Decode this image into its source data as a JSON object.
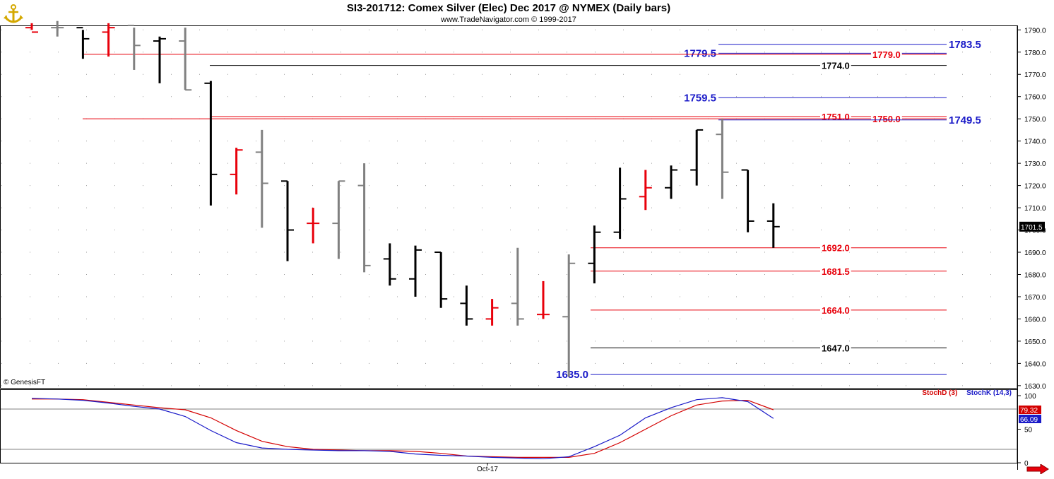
{
  "header": {
    "title": "SI3-201712:  Comex Silver (Elec) Dec 2017 @ NYMEX  (Daily bars)",
    "subtitle": "www.TradeNavigator.com © 1999-2017"
  },
  "footer": {
    "copyright": "© GenesisFT",
    "date_label": "Oct-17"
  },
  "colors": {
    "up_bar": "#000000",
    "down_bar": "#808080",
    "red_bar": "#e8000b",
    "red_line": "#e8000b",
    "blue_line": "#1a1ac8",
    "black_line": "#000000",
    "stoch_d": "#d40000",
    "stoch_k": "#1a1ac8"
  },
  "chart_data": {
    "type": "ohlc",
    "y_axis": {
      "range": [
        1629,
        1792
      ],
      "ticks": [
        "1630.0",
        "1640.0",
        "1650.0",
        "1660.0",
        "1670.0",
        "1680.0",
        "1690.0",
        "1700.0",
        "1710.0",
        "1720.0",
        "1730.0",
        "1740.0",
        "1750.0",
        "1760.0",
        "1770.0",
        "1780.0",
        "1790.0"
      ]
    },
    "last_price": "1701.5",
    "bars": [
      {
        "o": 1791.0,
        "h": 1793.0,
        "l": 1790.0,
        "c": 1789.0,
        "color": "red"
      },
      {
        "o": 1791.0,
        "h": 1794.0,
        "l": 1787.0,
        "c": 1791.0,
        "color": "grey"
      },
      {
        "o": 1791.0,
        "h": 1790.0,
        "l": 1777.0,
        "c": 1786.0,
        "color": "black"
      },
      {
        "o": 1789.0,
        "h": 1793.0,
        "l": 1778.0,
        "c": 1791.0,
        "color": "red"
      },
      {
        "o": 1792.0,
        "h": 1791.0,
        "l": 1772.0,
        "c": 1783.0,
        "color": "grey"
      },
      {
        "o": 1785.0,
        "h": 1787.0,
        "l": 1766.0,
        "c": 1786.0,
        "color": "black"
      },
      {
        "o": 1785.0,
        "h": 1791.0,
        "l": 1763.0,
        "c": 1763.0,
        "color": "grey"
      },
      {
        "o": 1766.0,
        "h": 1767.0,
        "l": 1711.0,
        "c": 1725.0,
        "color": "black"
      },
      {
        "o": 1725.0,
        "h": 1737.0,
        "l": 1716.0,
        "c": 1736.0,
        "color": "red"
      },
      {
        "o": 1735.0,
        "h": 1745.0,
        "l": 1701.0,
        "c": 1721.0,
        "color": "grey"
      },
      {
        "o": 1722.0,
        "h": 1722.0,
        "l": 1686.0,
        "c": 1700.0,
        "color": "black"
      },
      {
        "o": 1703.0,
        "h": 1710.0,
        "l": 1694.0,
        "c": 1703.0,
        "color": "red"
      },
      {
        "o": 1703.0,
        "h": 1722.0,
        "l": 1687.0,
        "c": 1722.0,
        "color": "grey"
      },
      {
        "o": 1720.0,
        "h": 1730.0,
        "l": 1681.0,
        "c": 1684.0,
        "color": "grey"
      },
      {
        "o": 1687.0,
        "h": 1694.0,
        "l": 1675.0,
        "c": 1678.0,
        "color": "black"
      },
      {
        "o": 1678.0,
        "h": 1693.0,
        "l": 1670.0,
        "c": 1691.0,
        "color": "black"
      },
      {
        "o": 1690.0,
        "h": 1690.0,
        "l": 1665.0,
        "c": 1669.0,
        "color": "black"
      },
      {
        "o": 1667.0,
        "h": 1675.0,
        "l": 1657.0,
        "c": 1660.0,
        "color": "black"
      },
      {
        "o": 1660.0,
        "h": 1669.0,
        "l": 1657.0,
        "c": 1665.0,
        "color": "red"
      },
      {
        "o": 1667.0,
        "h": 1692.0,
        "l": 1657.0,
        "c": 1660.0,
        "color": "grey"
      },
      {
        "o": 1662.0,
        "h": 1677.0,
        "l": 1660.0,
        "c": 1662.0,
        "color": "red"
      },
      {
        "o": 1661.0,
        "h": 1689.0,
        "l": 1634.0,
        "c": 1685.0,
        "color": "grey"
      },
      {
        "o": 1685.0,
        "h": 1702.0,
        "l": 1676.0,
        "c": 1699.0,
        "color": "black"
      },
      {
        "o": 1699.0,
        "h": 1728.0,
        "l": 1696.0,
        "c": 1714.0,
        "color": "black"
      },
      {
        "o": 1715.0,
        "h": 1727.0,
        "l": 1709.0,
        "c": 1719.0,
        "color": "red"
      },
      {
        "o": 1719.0,
        "h": 1729.0,
        "l": 1714.0,
        "c": 1727.0,
        "color": "black"
      },
      {
        "o": 1727.0,
        "h": 1745.0,
        "l": 1720.0,
        "c": 1745.0,
        "color": "black"
      },
      {
        "o": 1743.0,
        "h": 1750.0,
        "l": 1714.0,
        "c": 1726.0,
        "color": "grey"
      },
      {
        "o": 1727.0,
        "h": 1727.0,
        "l": 1699.0,
        "c": 1704.0,
        "color": "black"
      },
      {
        "o": 1704.0,
        "h": 1712.0,
        "l": 1692.0,
        "c": 1701.5,
        "color": "black"
      }
    ],
    "levels": [
      {
        "label": "1783.5",
        "value": 1783.5,
        "color": "blue",
        "start_bar": 27,
        "label_side": "right"
      },
      {
        "label": "1779.5",
        "value": 1779.5,
        "color": "blue",
        "start_bar": 27,
        "label_side": "left-of-start"
      },
      {
        "label": "1779.0",
        "value": 1779.0,
        "color": "red",
        "start_bar": 2,
        "label_side": "right-inner"
      },
      {
        "label": "1774.0",
        "value": 1774.0,
        "color": "black",
        "start_bar": 7,
        "label_side": "mid"
      },
      {
        "label": "1759.5",
        "value": 1759.5,
        "color": "blue",
        "start_bar": 27,
        "label_side": "left-of-start"
      },
      {
        "label": "1751.0",
        "value": 1751.0,
        "color": "red",
        "start_bar": 7,
        "label_side": "mid"
      },
      {
        "label": "1750.0",
        "value": 1750.0,
        "color": "red",
        "start_bar": 2,
        "label_side": "right-inner"
      },
      {
        "label": "1749.5",
        "value": 1749.5,
        "color": "blue",
        "start_bar": 27,
        "label_side": "right"
      },
      {
        "label": "1692.0",
        "value": 1692.0,
        "color": "red",
        "start_bar": 22,
        "label_side": "mid"
      },
      {
        "label": "1681.5",
        "value": 1681.5,
        "color": "red",
        "start_bar": 22,
        "label_side": "mid"
      },
      {
        "label": "1664.0",
        "value": 1664.0,
        "color": "red",
        "start_bar": 22,
        "label_side": "mid"
      },
      {
        "label": "1647.0",
        "value": 1647.0,
        "color": "black",
        "start_bar": 22,
        "label_side": "mid"
      },
      {
        "label": "1635.0",
        "value": 1635.0,
        "color": "blue",
        "start_bar": 22,
        "label_side": "left-of-start"
      }
    ],
    "stochastic": {
      "y_range": [
        0,
        100
      ],
      "ticks": [
        "0",
        "50",
        "100"
      ],
      "reference_lines": [
        80,
        20
      ],
      "stochD_label": "StochD (3)",
      "stochK_label": "StochK (14,3)",
      "stochD_value": "79.32",
      "stochK_value": "66.09",
      "stochD": [
        95,
        95,
        94,
        90,
        86,
        82,
        79,
        67,
        48,
        32,
        24,
        20,
        19,
        18,
        18,
        17,
        14,
        10,
        9,
        8,
        8,
        8,
        14,
        30,
        50,
        70,
        86,
        92,
        93,
        79
      ],
      "stochK": [
        96,
        95,
        93,
        89,
        84,
        80,
        69,
        48,
        30,
        22,
        20,
        19,
        18,
        18,
        17,
        13,
        11,
        10,
        8,
        7,
        6,
        9,
        24,
        41,
        67,
        82,
        94,
        97,
        91,
        66
      ]
    }
  }
}
